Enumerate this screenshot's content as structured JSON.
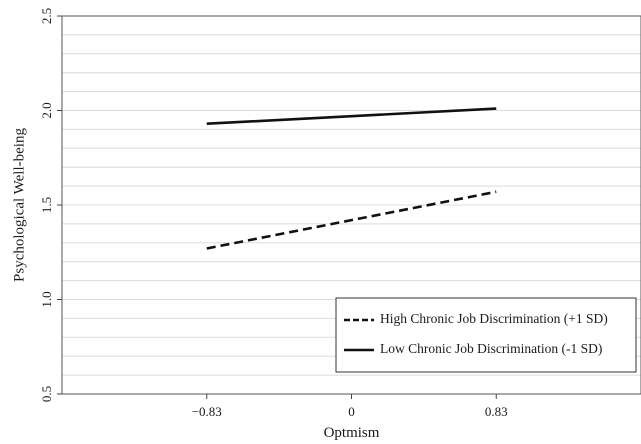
{
  "chart_data": {
    "type": "line",
    "xlabel": "Optmism",
    "ylabel": "Psychological Well-being",
    "categories": [
      "-0.83",
      "0",
      "0.83"
    ],
    "x": [
      -0.83,
      0,
      0.83
    ],
    "xlim": [
      -1.66,
      1.66
    ],
    "ylim": [
      0.5,
      2.5
    ],
    "yticks": [
      "0.5",
      "1.0",
      "1.5",
      "2.0",
      "2.5"
    ],
    "ytick_values": [
      0.5,
      1.0,
      1.5,
      2.0,
      2.5
    ],
    "grid": true,
    "legend_position": "bottom-right",
    "series": [
      {
        "name": "High Chronic Job Discrimination (+1 SD)",
        "style": "dashed",
        "values": [
          1.27,
          1.42,
          1.57
        ]
      },
      {
        "name": "Low Chronic Job Discrimination (-1 SD)",
        "style": "solid",
        "values": [
          1.93,
          1.97,
          2.01
        ]
      }
    ]
  },
  "colors": {
    "line": "#111111",
    "axis": "#444444",
    "grid": "#dcdcdc",
    "frame": "#555555"
  }
}
